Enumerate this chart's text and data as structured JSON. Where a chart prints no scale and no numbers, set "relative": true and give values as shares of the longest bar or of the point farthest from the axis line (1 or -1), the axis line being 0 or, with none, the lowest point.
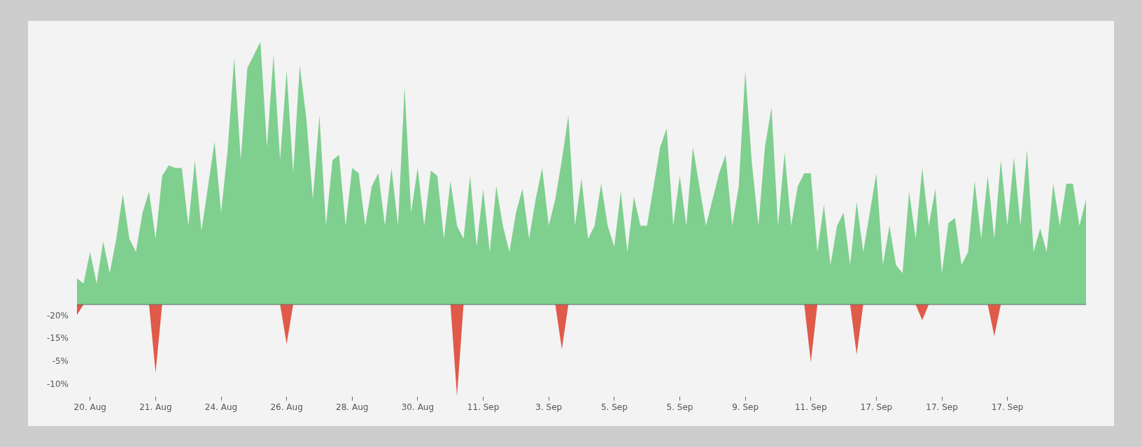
{
  "chart_data": {
    "type": "area",
    "relative": true,
    "categories": [
      null,
      null,
      "20. Aug",
      null,
      null,
      null,
      null,
      null,
      null,
      null,
      null,
      null,
      "21. Aug",
      null,
      null,
      null,
      null,
      null,
      null,
      null,
      null,
      null,
      "24. Aug",
      null,
      null,
      null,
      null,
      null,
      null,
      null,
      null,
      null,
      "26. Aug",
      null,
      null,
      null,
      null,
      null,
      null,
      null,
      null,
      null,
      "28. Aug",
      null,
      null,
      null,
      null,
      null,
      null,
      null,
      null,
      null,
      "30. Aug",
      null,
      null,
      null,
      null,
      null,
      null,
      null,
      null,
      null,
      "11. Sep",
      null,
      null,
      null,
      null,
      null,
      null,
      null,
      null,
      null,
      "3. Sep",
      null,
      null,
      null,
      null,
      null,
      null,
      null,
      null,
      null,
      "5. Sep",
      null,
      null,
      null,
      null,
      null,
      null,
      null,
      null,
      null,
      "5. Sep",
      null,
      null,
      null,
      null,
      null,
      null,
      null,
      null,
      null,
      "9. Sep",
      null,
      null,
      null,
      null,
      null,
      null,
      null,
      null,
      null,
      "11. Sep",
      null,
      null,
      null,
      null,
      null,
      null,
      null,
      null,
      null,
      "17. Sep",
      null,
      null,
      null,
      null,
      null,
      null,
      null,
      null,
      null,
      "17. Sep",
      null,
      null,
      null,
      null,
      null,
      null,
      null,
      null,
      null,
      "17. Sep",
      null,
      null,
      null,
      null,
      null,
      null,
      null,
      null,
      null,
      null,
      null,
      null
    ],
    "series": [
      {
        "color": "#7fcf8f",
        "values": [
          0.1,
          0.08,
          0.2,
          0.08,
          0.24,
          0.12,
          0.25,
          0.42,
          0.25,
          0.2,
          0.35,
          0.43,
          0.25,
          0.49,
          0.53,
          0.52,
          0.52,
          0.3,
          0.55,
          0.28,
          0.45,
          0.62,
          0.35,
          0.59,
          0.94,
          0.55,
          0.9,
          0.95,
          1,
          0.6,
          0.95,
          0.55,
          0.89,
          0.5,
          0.91,
          0.71,
          0.4,
          0.72,
          0.3,
          0.55,
          0.57,
          0.3,
          0.52,
          0.5,
          0.3,
          0.45,
          0.5,
          0.3,
          0.52,
          0.3,
          0.83,
          0.35,
          0.52,
          0.3,
          0.51,
          0.49,
          0.25,
          0.47,
          0.3,
          0.25,
          0.49,
          0.22,
          0.44,
          0.2,
          0.45,
          0.3,
          0.2,
          0.35,
          0.44,
          0.25,
          0.4,
          0.52,
          0.3,
          0.4,
          0.55,
          0.72,
          0.3,
          0.48,
          0.25,
          0.3,
          0.46,
          0.3,
          0.22,
          0.43,
          0.2,
          0.41,
          0.3,
          0.3,
          0.45,
          0.6,
          0.67,
          0.3,
          0.49,
          0.3,
          0.6,
          0.45,
          0.3,
          0.4,
          0.5,
          0.57,
          0.3,
          0.45,
          0.89,
          0.54,
          0.3,
          0.6,
          0.75,
          0.3,
          0.58,
          0.3,
          0.45,
          0.5,
          0.5,
          0.2,
          0.38,
          0.15,
          0.3,
          0.35,
          0.15,
          0.39,
          0.2,
          0.35,
          0.5,
          0.15,
          0.3,
          0.15,
          0.12,
          0.43,
          0.25,
          0.52,
          0.3,
          0.44,
          0.12,
          0.31,
          0.33,
          0.15,
          0.2,
          0.47,
          0.25,
          0.49,
          0.25,
          0.55,
          0.3,
          0.56,
          0.3,
          0.59,
          0.2,
          0.29,
          0.2,
          0.46,
          0.3,
          0.46,
          0.46,
          0.3,
          0.4
        ]
      },
      {
        "color": "#e05a4a",
        "values": [
          -0.04,
          0,
          0,
          0,
          0,
          0,
          0,
          0,
          0,
          0,
          0,
          0,
          -0.26,
          0,
          0,
          0,
          0,
          0,
          0,
          0,
          0,
          0,
          0,
          0,
          0,
          0,
          0,
          0,
          0,
          0,
          0,
          0,
          -0.15,
          0,
          0,
          0,
          0,
          0,
          0,
          0,
          0,
          0,
          0,
          0,
          0,
          0,
          0,
          0,
          0,
          0,
          0,
          0,
          0,
          0,
          0,
          0,
          0,
          0,
          -0.35,
          0,
          0,
          0,
          0,
          0,
          0,
          0,
          0,
          0,
          0,
          0,
          0,
          0,
          0,
          0,
          -0.17,
          0,
          0,
          0,
          0,
          0,
          0,
          0,
          0,
          0,
          0,
          0,
          0,
          0,
          0,
          0,
          0,
          0,
          0,
          0,
          0,
          0,
          0,
          0,
          0,
          0,
          0,
          0,
          0,
          0,
          0,
          0,
          0,
          0,
          0,
          0,
          0,
          0,
          -0.22,
          0,
          0,
          0,
          0,
          0,
          0,
          -0.19,
          0,
          0,
          0,
          0,
          0,
          0,
          0,
          0,
          0,
          -0.06,
          0,
          0,
          0,
          0,
          0,
          0,
          0,
          0,
          0,
          0,
          -0.12,
          0,
          0,
          0,
          0,
          0,
          0,
          0,
          0,
          0,
          0,
          0,
          0,
          0,
          0
        ]
      }
    ],
    "ref_lines": [
      {
        "axis": "y",
        "value": 0
      }
    ],
    "annotations": [
      "-20%",
      "-15%",
      "-5%",
      "-10%"
    ]
  }
}
